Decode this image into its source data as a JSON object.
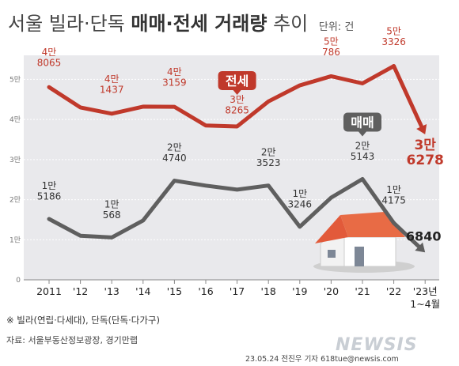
{
  "title": {
    "pre": "서울 빌라·단독",
    "bold": "매매·전세 거래량",
    "post": "추이",
    "unit": "단위: 건"
  },
  "note": "※ 빌라(연립·다세대), 단독(단독·다가구)",
  "source": "자료: 서울부동산정보광장, 경기만랩",
  "credit": "23.05.24 전진우 기자 618tue@newsis.com",
  "brand": "NEWSIS",
  "colors": {
    "rent": "#c0392b",
    "sale": "#5f5f5f",
    "area": "#e9e9ec"
  },
  "chart_data": {
    "type": "line",
    "categories": [
      "2011",
      "'12",
      "'13",
      "'14",
      "'15",
      "'16",
      "'17",
      "'18",
      "'19",
      "'20",
      "'21",
      "'22",
      "'23년\n1~4월"
    ],
    "ylim": [
      0,
      56000
    ],
    "yticks": [
      {
        "value": 0,
        "label": "0"
      },
      {
        "value": 10000,
        "label": "1만"
      },
      {
        "value": 20000,
        "label": "2만"
      },
      {
        "value": 30000,
        "label": "3만"
      },
      {
        "value": 40000,
        "label": "4만"
      },
      {
        "value": 50000,
        "label": "5만"
      }
    ],
    "series": [
      {
        "name": "전세",
        "values": [
          48065,
          43000,
          41437,
          43200,
          43159,
          38500,
          38265,
          44500,
          48500,
          50786,
          49000,
          53326,
          36278
        ],
        "labels": [
          "4만\n8065",
          "",
          "4만\n1437",
          "",
          "4만\n3159",
          "",
          "3만\n8265",
          "",
          "",
          "5만\n786",
          "",
          "5만\n3326",
          "3만\n6278"
        ]
      },
      {
        "name": "매매",
        "values": [
          15186,
          11000,
          10568,
          14800,
          24740,
          23500,
          22500,
          23523,
          13246,
          20500,
          25143,
          14175,
          6840
        ],
        "labels": [
          "1만\n5186",
          "",
          "1만\n568",
          "",
          "2만\n4740",
          "",
          "",
          "2만\n3523",
          "1만\n3246",
          "",
          "2만\n5143",
          "1만\n4175",
          "6840"
        ]
      }
    ]
  }
}
